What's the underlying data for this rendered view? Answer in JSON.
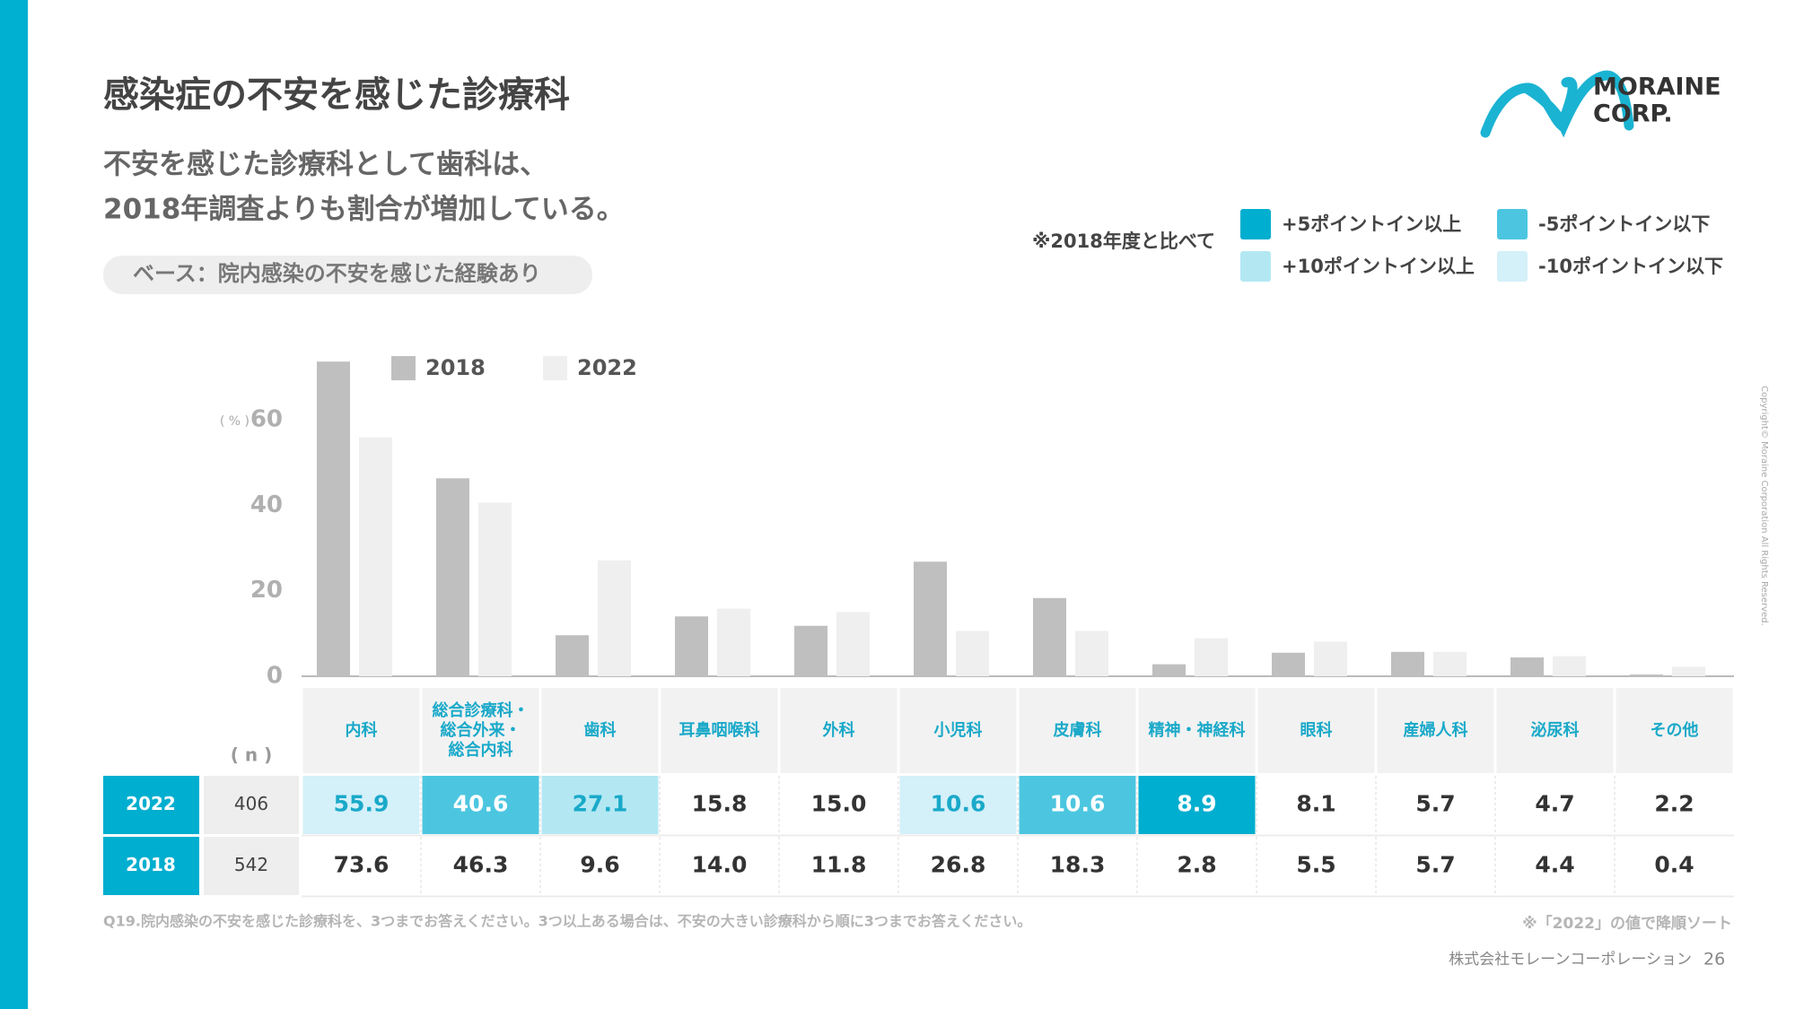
{
  "header": {
    "title": "感染症の不安を感じた診療科",
    "subtitle_lines": [
      "不安を感じた診療科として歯科は、",
      "2018年調査よりも割合が増加している。"
    ],
    "base_note": "ベース：院内感染の不安を感じた経験あり",
    "logo": [
      "MORAINE",
      "CORP."
    ]
  },
  "change_legend": {
    "note": "※2018年度と比べて",
    "items": [
      {
        "label": "+5ポイントイン以上",
        "color": "#00aecf"
      },
      {
        "label": "-5ポイントイン以下",
        "color": "#4cc6e0"
      },
      {
        "label": "+10ポイントイン以上",
        "color": "#b3e8f3"
      },
      {
        "label": "-10ポイントイン以下",
        "color": "#d4f0f9"
      }
    ]
  },
  "chart_data": {
    "type": "bar",
    "y_unit": "( % )",
    "categories": [
      "内科",
      "総合診療科・\n総合外来・\n総合内科",
      "歯科",
      "耳鼻咽喉科",
      "外科",
      "小児科",
      "皮膚科",
      "精神・神経科",
      "眼科",
      "産婦人科",
      "泌尿科",
      "その他"
    ],
    "series": [
      {
        "name": "2018",
        "color": "#bfbfbf",
        "n": 542,
        "values": [
          73.6,
          46.3,
          9.6,
          14.0,
          11.8,
          26.8,
          18.3,
          2.8,
          5.5,
          5.7,
          4.4,
          0.4
        ],
        "value_labels": [
          "73.6",
          "46.3",
          "9.6",
          "14.0",
          "11.8",
          "26.8",
          "18.3",
          "2.8",
          "5.5",
          "5.7",
          "4.4",
          "0.4"
        ]
      },
      {
        "name": "2022",
        "color": "#efefef",
        "n": 406,
        "values": [
          55.9,
          40.6,
          27.1,
          15.8,
          15.0,
          10.6,
          10.6,
          8.9,
          8.1,
          5.7,
          4.7,
          2.2
        ],
        "value_labels": [
          "55.9",
          "40.6",
          "27.1",
          "15.8",
          "15.0",
          "10.6",
          "10.6",
          "8.9",
          "8.1",
          "5.7",
          "4.7",
          "2.2"
        ],
        "cell_colors": [
          "#d4f0f9",
          "#4cc6e0",
          "#b3e8f3",
          null,
          null,
          "#d4f0f9",
          "#4cc6e0",
          "#00aecf",
          null,
          null,
          null,
          null
        ]
      }
    ],
    "ylim": [
      0,
      75
    ],
    "yticks": [
      0,
      20,
      40,
      60
    ]
  },
  "table": {
    "n_label": "( n )",
    "row_order": [
      1,
      0
    ]
  },
  "footer": {
    "question": "Q19.院内感染の不安を感じた診療科を、3つまでお答えください。3つ以上ある場合は、不安の大きい診療科から順に3つまでお答えください。",
    "sort_note": "※「2022」の値で降順ソート",
    "company": "株式会社モレーンコーポレーション",
    "page": 26,
    "copyright": "Copyright© Moraine Corporation All Rights Reserved."
  }
}
